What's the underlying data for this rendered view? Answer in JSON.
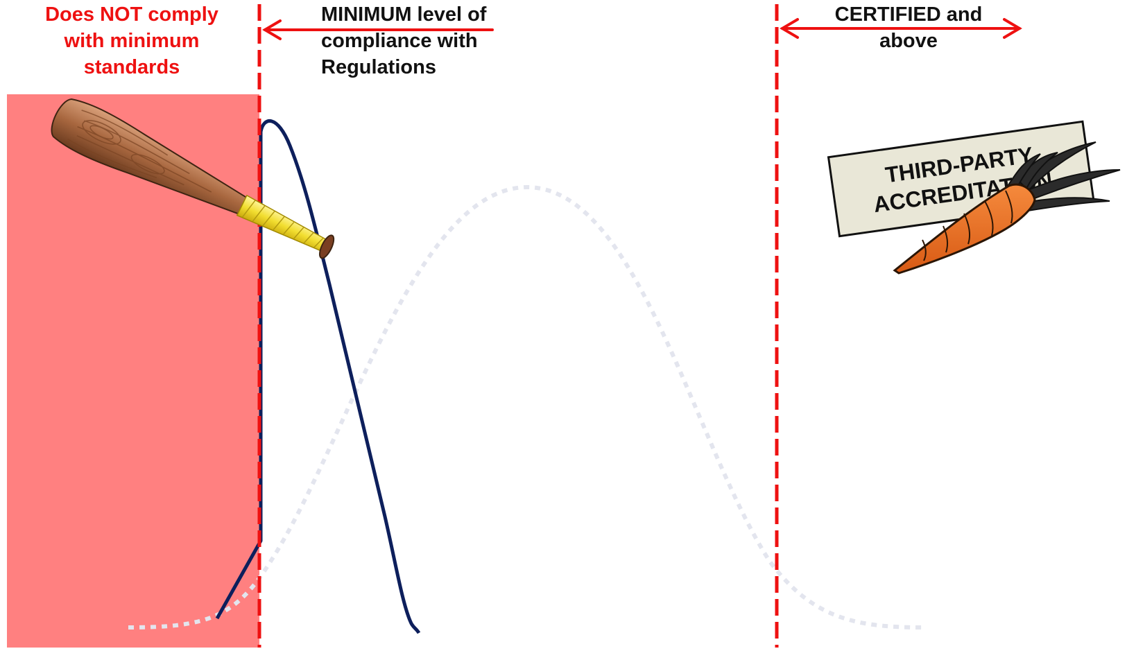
{
  "zones": {
    "noncompliant": {
      "lines": [
        "Does NOT comply",
        "with minimum",
        "standards"
      ],
      "color": "#ee1111",
      "fill": "#ff8080"
    },
    "minimum": {
      "lines": [
        "MINIMUM level of",
        "compliance with",
        "Regulations"
      ]
    },
    "certified": {
      "lines": [
        "CERTIFIED and",
        "above"
      ]
    }
  },
  "sign": {
    "lines": [
      "THIRD-PARTY",
      "ACCREDITATION"
    ]
  },
  "icons": [
    "baseball-bat-icon",
    "carrot-icon"
  ],
  "colors": {
    "threshold": "#ee1111",
    "current_curve": "#0d1f5c",
    "target_curve": "#e3e5ee",
    "sign_fill": "#e9e7d7"
  }
}
